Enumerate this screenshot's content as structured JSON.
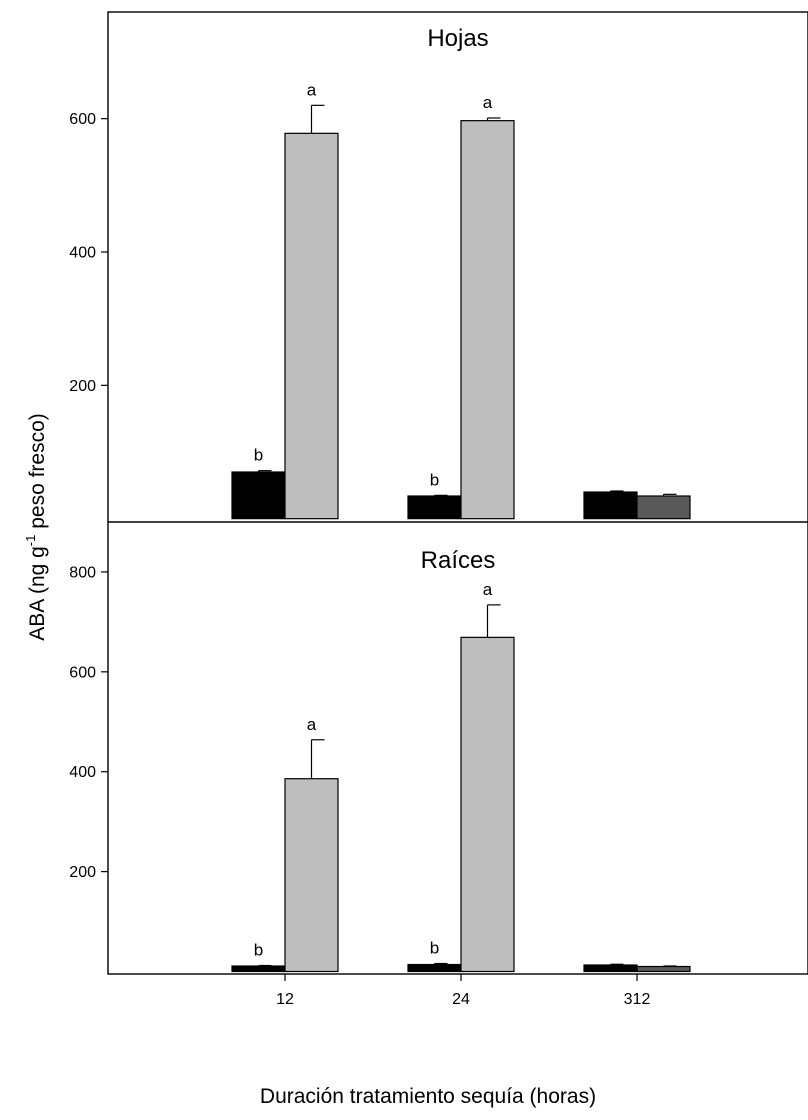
{
  "chart_data": {
    "type": "bar",
    "xlabel": "Duración tratamiento sequía (horas)",
    "ylabel": {
      "pre": "ABA (ng g",
      "sup": "-1",
      "post": " peso fresco)"
    },
    "categories": [
      "12",
      "24",
      "312"
    ],
    "colors": {
      "series1": "#000000",
      "series2": "#bebebe",
      "series2_312": "#595959"
    },
    "panels": [
      {
        "title": "Hojas",
        "ylim": [
          -5,
          760
        ],
        "yticks": [
          200,
          400,
          600
        ],
        "series": [
          {
            "values": [
              70,
              34,
              40
            ],
            "errors": [
              2,
              1,
              1.5
            ],
            "labels": [
              "b",
              "b",
              ""
            ]
          },
          {
            "values": [
              578,
              597,
              34
            ],
            "errors": [
              42,
              4,
              2.5
            ],
            "labels": [
              "a",
              "a",
              ""
            ]
          }
        ]
      },
      {
        "title": "Raíces",
        "ylim": [
          -5,
          900
        ],
        "yticks": [
          200,
          400,
          600,
          800
        ],
        "series": [
          {
            "values": [
              11,
              14,
              13
            ],
            "errors": [
              1,
              2,
              1.5
            ],
            "labels": [
              "b",
              "b",
              ""
            ]
          },
          {
            "values": [
              386,
              669,
              10
            ],
            "errors": [
              78,
              65,
              1
            ],
            "labels": [
              "a",
              "a",
              ""
            ]
          }
        ]
      }
    ]
  }
}
